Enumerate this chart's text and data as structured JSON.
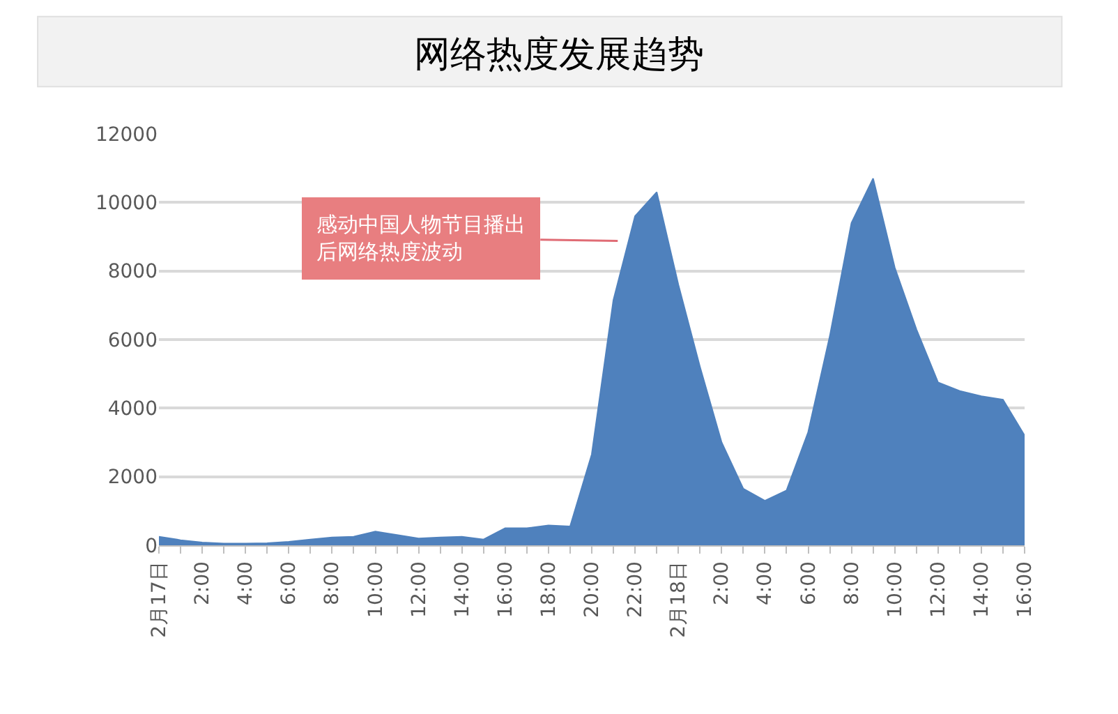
{
  "chart_data": {
    "type": "area",
    "title": "网络热度发展趋势",
    "categories": [
      "2月17日",
      null,
      "2:00",
      null,
      "4:00",
      null,
      "6:00",
      null,
      "8:00",
      null,
      "10:00",
      null,
      "12:00",
      null,
      "14:00",
      null,
      "16:00",
      null,
      "18:00",
      null,
      "20:00",
      null,
      "22:00",
      null,
      "2月18日",
      null,
      "2:00",
      null,
      "4:00",
      null,
      "6:00",
      null,
      "8:00",
      null,
      "10:00",
      null,
      "12:00",
      null,
      "14:00",
      null,
      "16:00"
    ],
    "values": [
      250,
      150,
      80,
      50,
      50,
      60,
      100,
      170,
      230,
      250,
      400,
      300,
      200,
      230,
      250,
      170,
      500,
      500,
      580,
      550,
      2650,
      7150,
      9600,
      10300,
      7600,
      5200,
      3000,
      1650,
      1300,
      1600,
      3300,
      6100,
      9400,
      10700,
      8100,
      6300,
      4750,
      4500,
      4350,
      4250,
      3200
    ],
    "color": "#4f81bd",
    "ylim": [
      0,
      12000
    ],
    "yticks": [
      0,
      2000,
      4000,
      6000,
      8000,
      10000,
      12000
    ],
    "grid": "y",
    "annotations": [
      "感动中国人物节目播出后网络热度波动"
    ]
  }
}
